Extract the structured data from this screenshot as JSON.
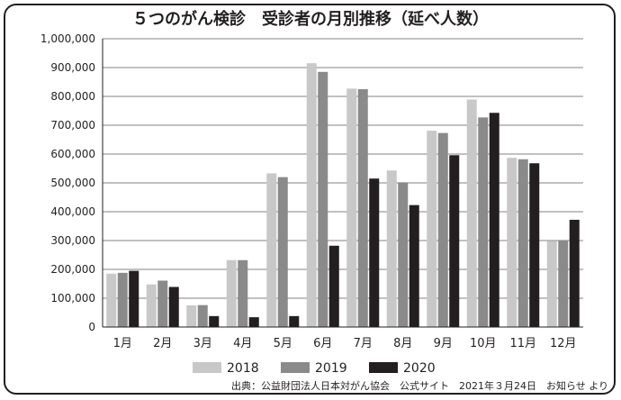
{
  "chart_data": {
    "type": "bar",
    "title": "５つのがん検診　受診者の月別推移（延べ人数）",
    "categories": [
      "1月",
      "2月",
      "3月",
      "4月",
      "5月",
      "6月",
      "7月",
      "8月",
      "9月",
      "10月",
      "11月",
      "12月"
    ],
    "series": [
      {
        "name": "2018",
        "color": "#c8c8c8",
        "values": [
          185000,
          148000,
          75000,
          232000,
          533000,
          915000,
          827000,
          543000,
          681000,
          789000,
          587000,
          299000
        ]
      },
      {
        "name": "2019",
        "color": "#8a8a8a",
        "values": [
          188000,
          161000,
          76000,
          232000,
          520000,
          885000,
          825000,
          502000,
          673000,
          727000,
          582000,
          300000
        ]
      },
      {
        "name": "2020",
        "color": "#231f20",
        "values": [
          195000,
          139000,
          38000,
          34000,
          38000,
          282000,
          515000,
          423000,
          596000,
          743000,
          568000,
          372000
        ]
      }
    ],
    "ylim": [
      0,
      1000000
    ],
    "yticks": [
      0,
      100000,
      200000,
      300000,
      400000,
      500000,
      600000,
      700000,
      800000,
      900000,
      1000000
    ],
    "ytick_labels": [
      "0",
      "100,000",
      "200,000",
      "300,000",
      "400,000",
      "500,000",
      "600,000",
      "700,000",
      "800,000",
      "900,000",
      "1,000,000"
    ],
    "xlabel": "",
    "ylabel": "",
    "grid": true,
    "legend_position": "bottom",
    "source": "出典：公益財団法人日本対がん協会　公式サイト　2021年３月24日　お知らせ より"
  }
}
